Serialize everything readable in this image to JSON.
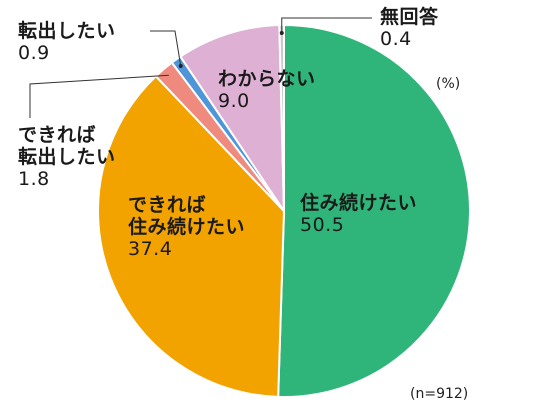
{
  "chart_data": {
    "type": "pie",
    "unit": "(%)",
    "note": "(n=912)",
    "slices": [
      {
        "label": "住み続けたい",
        "value": 50.5,
        "value_text": "50.5",
        "color": "#2fb57a"
      },
      {
        "label": "できれば\n住み続けたい",
        "value": 37.4,
        "value_text": "37.4",
        "color": "#f2a300"
      },
      {
        "label": "できれば\n転出したい",
        "value": 1.8,
        "value_text": "1.8",
        "color": "#ef8a7e"
      },
      {
        "label": "転出したい",
        "value": 0.9,
        "value_text": "0.9",
        "color": "#4f95d9"
      },
      {
        "label": "わからない",
        "value": 9.0,
        "value_text": "9.0",
        "color": "#deb0d4"
      },
      {
        "label": "無回答",
        "value": 0.4,
        "value_text": "0.4",
        "color": "#c9c9c9"
      }
    ]
  }
}
